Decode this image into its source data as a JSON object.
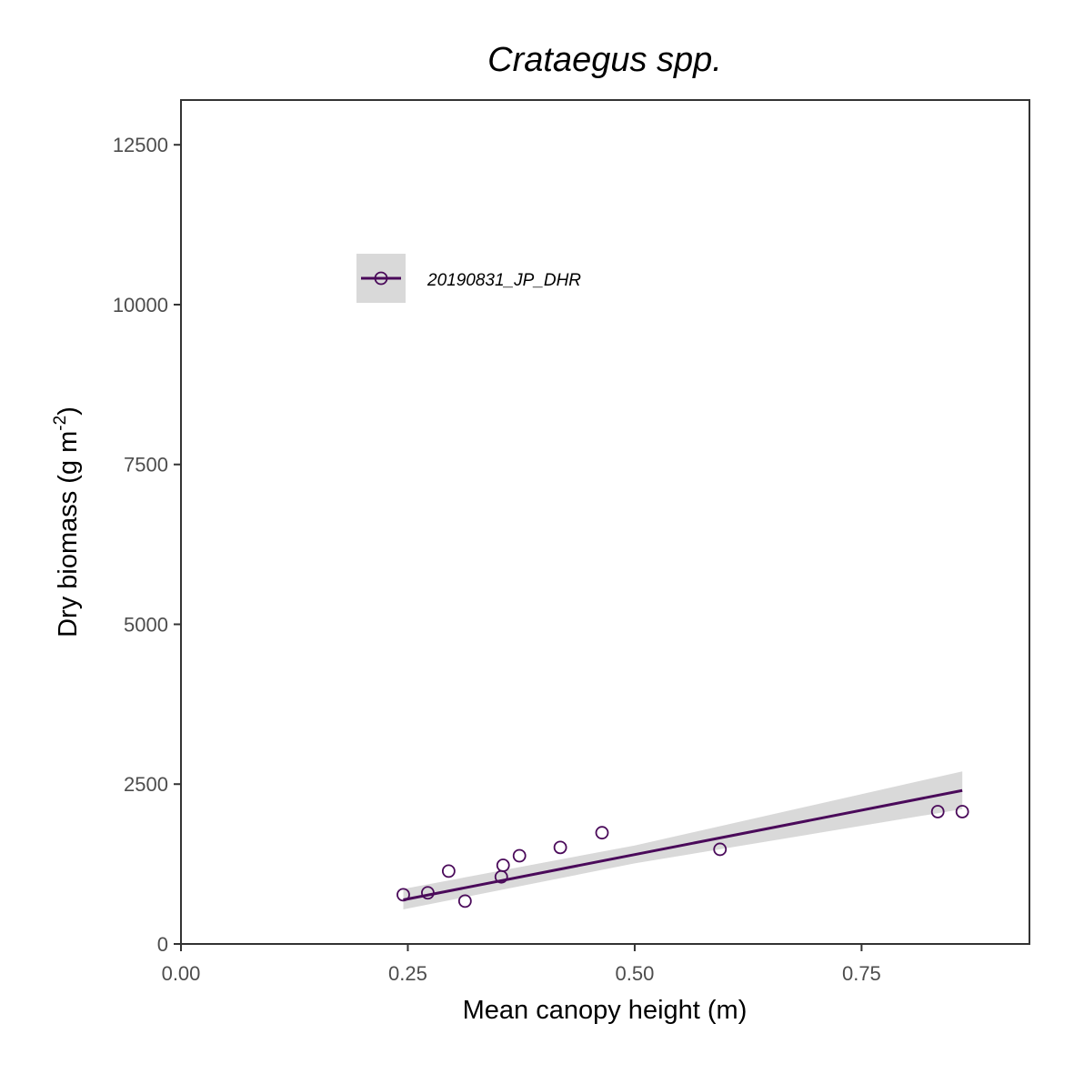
{
  "chart_data": {
    "type": "scatter",
    "title": "Crataegus spp.",
    "xlabel": "Mean canopy height (m)",
    "ylabel_main": "Dry biomass (g m",
    "ylabel_sup": "-2",
    "ylabel_end": ")",
    "xlim": [
      0,
      0.935
    ],
    "ylim": [
      0,
      13200
    ],
    "x_ticks": [
      0,
      0.25,
      0.5,
      0.75
    ],
    "x_tick_labels": [
      "0.00",
      "0.25",
      "0.50",
      "0.75"
    ],
    "y_ticks": [
      0,
      2500,
      5000,
      7500,
      10000,
      12500
    ],
    "y_tick_labels": [
      "0",
      "2500",
      "5000",
      "7500",
      "10000",
      "12500"
    ],
    "grid": false,
    "legend_position": "top-left",
    "series": [
      {
        "name": "20190831_JP_DHR",
        "color": "#4a0a5a",
        "points": [
          {
            "x": 0.245,
            "y": 770
          },
          {
            "x": 0.272,
            "y": 800
          },
          {
            "x": 0.295,
            "y": 1140
          },
          {
            "x": 0.313,
            "y": 670
          },
          {
            "x": 0.353,
            "y": 1050
          },
          {
            "x": 0.355,
            "y": 1230
          },
          {
            "x": 0.373,
            "y": 1380
          },
          {
            "x": 0.418,
            "y": 1510
          },
          {
            "x": 0.464,
            "y": 1740
          },
          {
            "x": 0.594,
            "y": 1480
          },
          {
            "x": 0.834,
            "y": 2070
          },
          {
            "x": 0.861,
            "y": 2070
          }
        ],
        "fit": {
          "x_start": 0.245,
          "x_end": 0.861,
          "y_start": 690,
          "y_end": 2400,
          "ci_start": [
            540,
            860
          ],
          "ci_mid_x": 0.5,
          "ci_mid": [
            1260,
            1540
          ],
          "ci_end": [
            2110,
            2700
          ]
        }
      }
    ],
    "ci_color": "#d9d9d9"
  }
}
